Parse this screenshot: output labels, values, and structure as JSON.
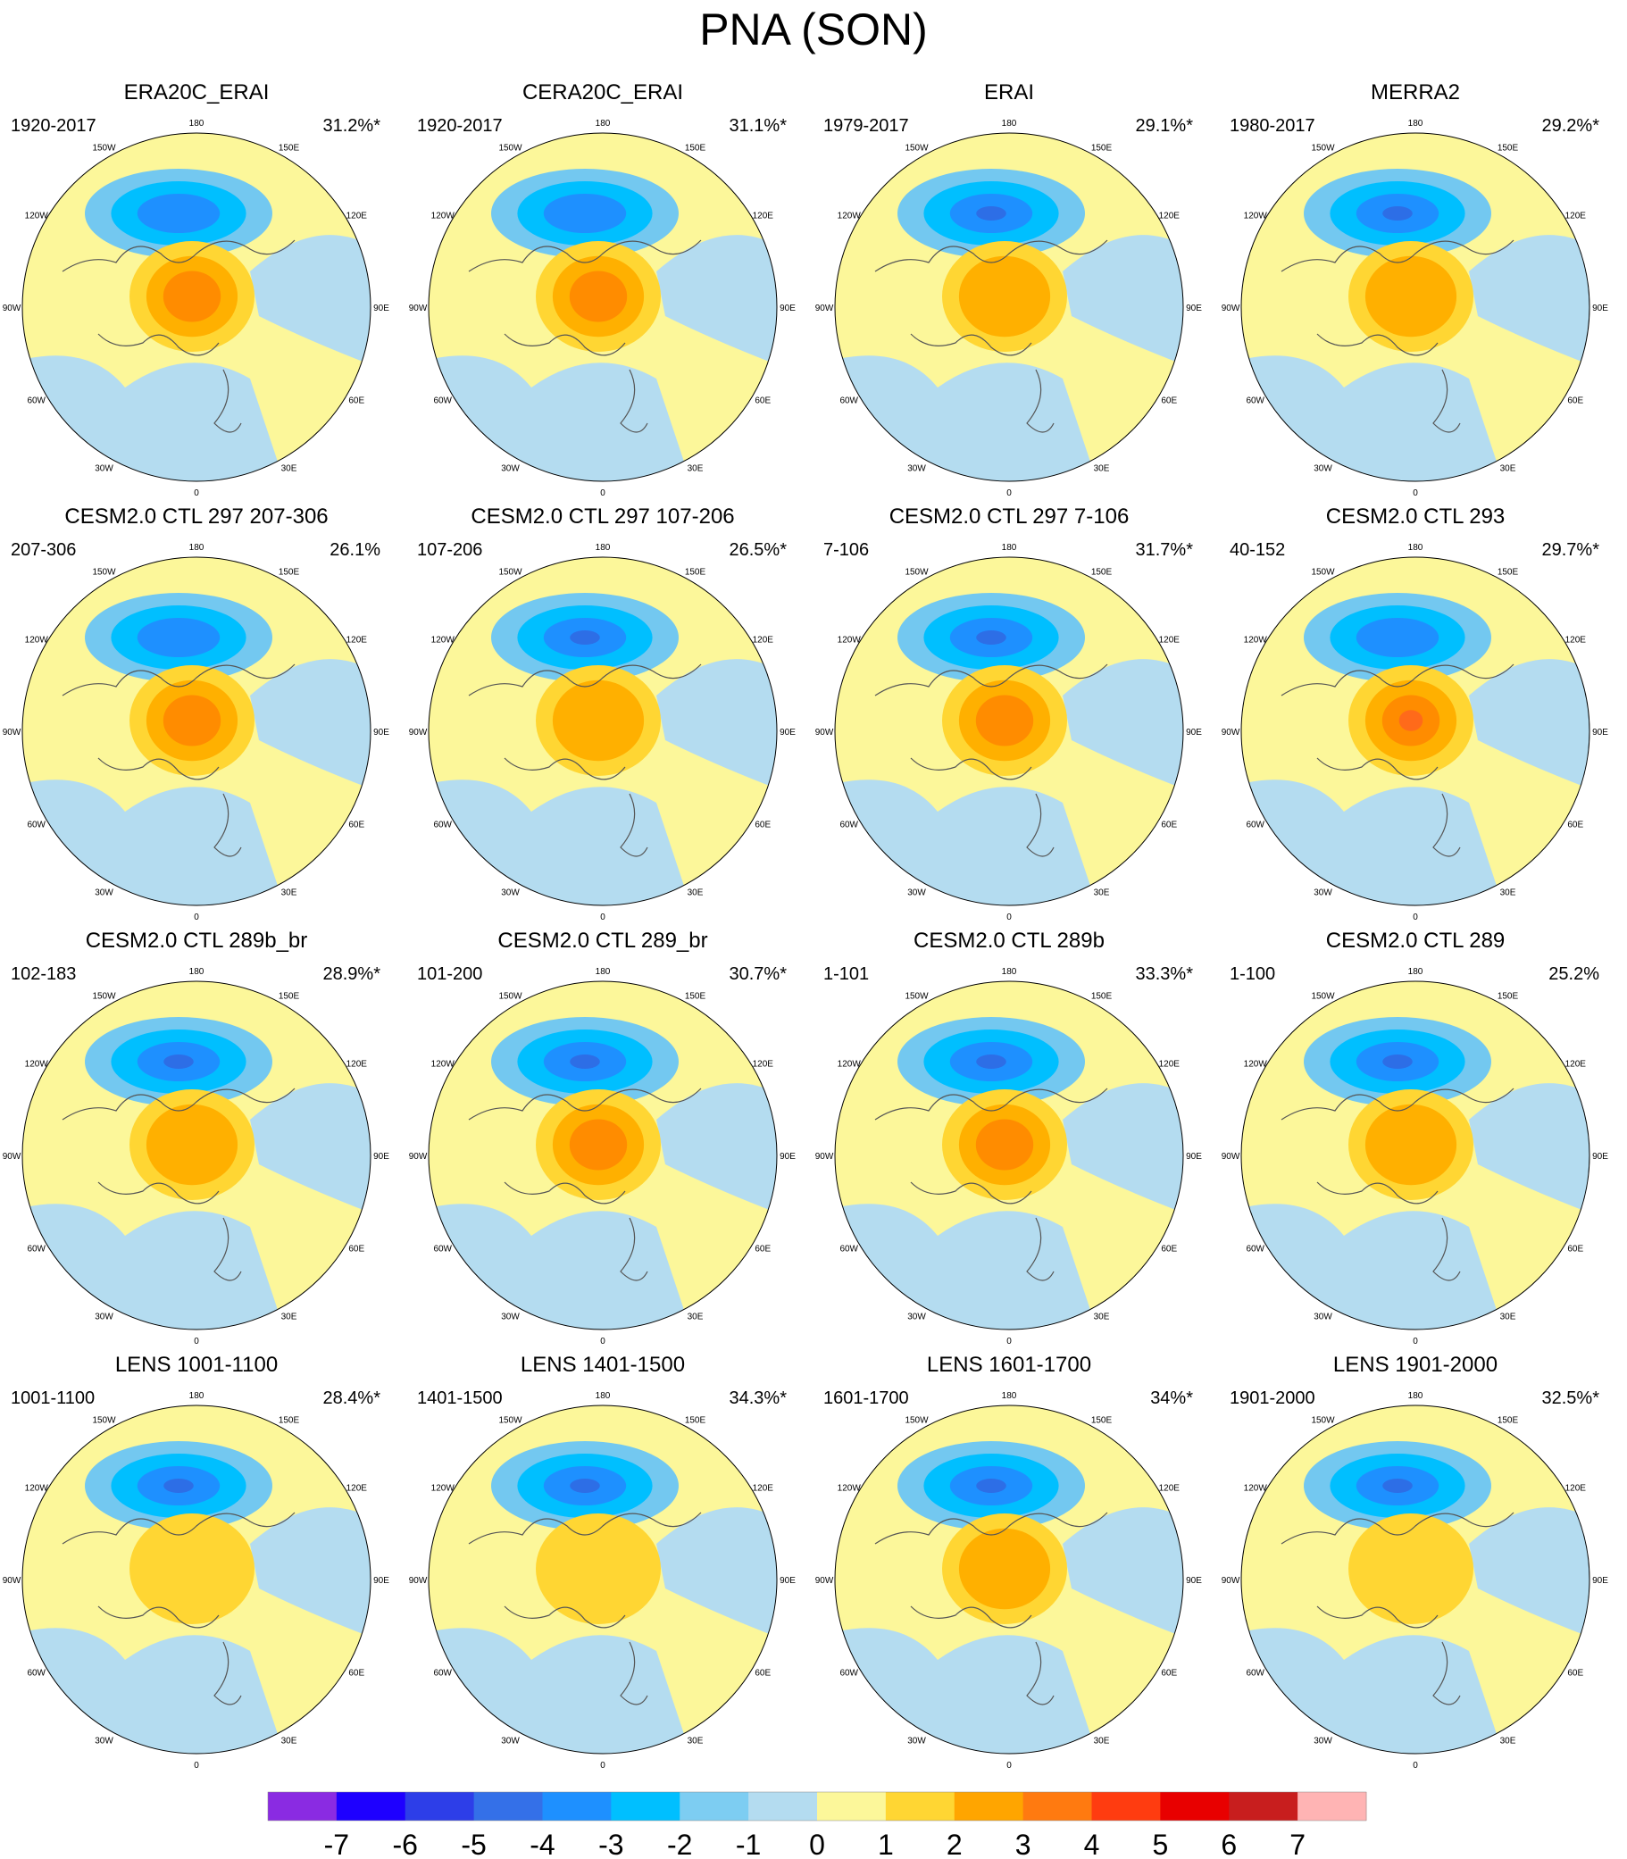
{
  "title": "PNA (SON)",
  "longitude_labels": [
    "180",
    "150E",
    "120E",
    "90E",
    "60E",
    "30E",
    "0",
    "30W",
    "60W",
    "90W",
    "120W",
    "150W"
  ],
  "panels": [
    {
      "title": "ERA20C_ERAI",
      "years": "1920-2017",
      "variance": "31.2%*",
      "low": -3,
      "high": 3
    },
    {
      "title": "CERA20C_ERAI",
      "years": "1920-2017",
      "variance": "31.1%*",
      "low": -3,
      "high": 3
    },
    {
      "title": "ERAI",
      "years": "1979-2017",
      "variance": "29.1%*",
      "low": -4,
      "high": 2
    },
    {
      "title": "MERRA2",
      "years": "1980-2017",
      "variance": "29.2%*",
      "low": -4,
      "high": 2
    },
    {
      "title": "CESM2.0 CTL 297 207-306",
      "years": "207-306",
      "variance": "26.1%",
      "low": -3,
      "high": 3
    },
    {
      "title": "CESM2.0 CTL 297 107-206",
      "years": "107-206",
      "variance": "26.5%*",
      "low": -4,
      "high": 2
    },
    {
      "title": "CESM2.0 CTL 297 7-106",
      "years": "7-106",
      "variance": "31.7%*",
      "low": -4,
      "high": 3
    },
    {
      "title": "CESM2.0 CTL 293",
      "years": "40-152",
      "variance": "29.7%*",
      "low": -3,
      "high": 4
    },
    {
      "title": "CESM2.0 CTL 289b_br",
      "years": "102-183",
      "variance": "28.9%*",
      "low": -4,
      "high": 2
    },
    {
      "title": "CESM2.0 CTL 289_br",
      "years": "101-200",
      "variance": "30.7%*",
      "low": -4,
      "high": 3
    },
    {
      "title": "CESM2.0 CTL 289b",
      "years": "1-101",
      "variance": "33.3%*",
      "low": -4,
      "high": 3
    },
    {
      "title": "CESM2.0 CTL 289",
      "years": "1-100",
      "variance": "25.2%",
      "low": -4,
      "high": 2
    },
    {
      "title": "LENS 1001-1100",
      "years": "1001-1100",
      "variance": "28.4%*",
      "low": -4,
      "high": 1
    },
    {
      "title": "LENS 1401-1500",
      "years": "1401-1500",
      "variance": "34.3%*",
      "low": -4,
      "high": 1
    },
    {
      "title": "LENS 1601-1700",
      "years": "1601-1700",
      "variance": "34%*",
      "low": -4,
      "high": 2
    },
    {
      "title": "LENS 1901-2000",
      "years": "1901-2000",
      "variance": "32.5%*",
      "low": -4,
      "high": 1
    }
  ],
  "colorbar": {
    "labels": [
      "-7",
      "-6",
      "-5",
      "-4",
      "-3",
      "-2",
      "-1",
      "0",
      "1",
      "2",
      "3",
      "4",
      "5",
      "6",
      "7"
    ],
    "colors": [
      "#8a2be2",
      "#1e00ff",
      "#2d3ee8",
      "#3470e8",
      "#1e90ff",
      "#00bfff",
      "#7dcdf2",
      "#b4dcf0",
      "#fcf79a",
      "#ffd633",
      "#ffa500",
      "#ff7a10",
      "#ff3c10",
      "#e80000",
      "#c81e1e",
      "#ffb4b4"
    ]
  },
  "level_colors": {
    "-4": "#2d6ee6",
    "-3": "#1e90ff",
    "-2": "#00bfff",
    "-1": "#73c8f0",
    "neg": "#b4dcf0",
    "pos": "#fcf79a",
    "1": "#ffd633",
    "2": "#ffb000",
    "3": "#ff8c00",
    "4": "#ff6a1a"
  }
}
